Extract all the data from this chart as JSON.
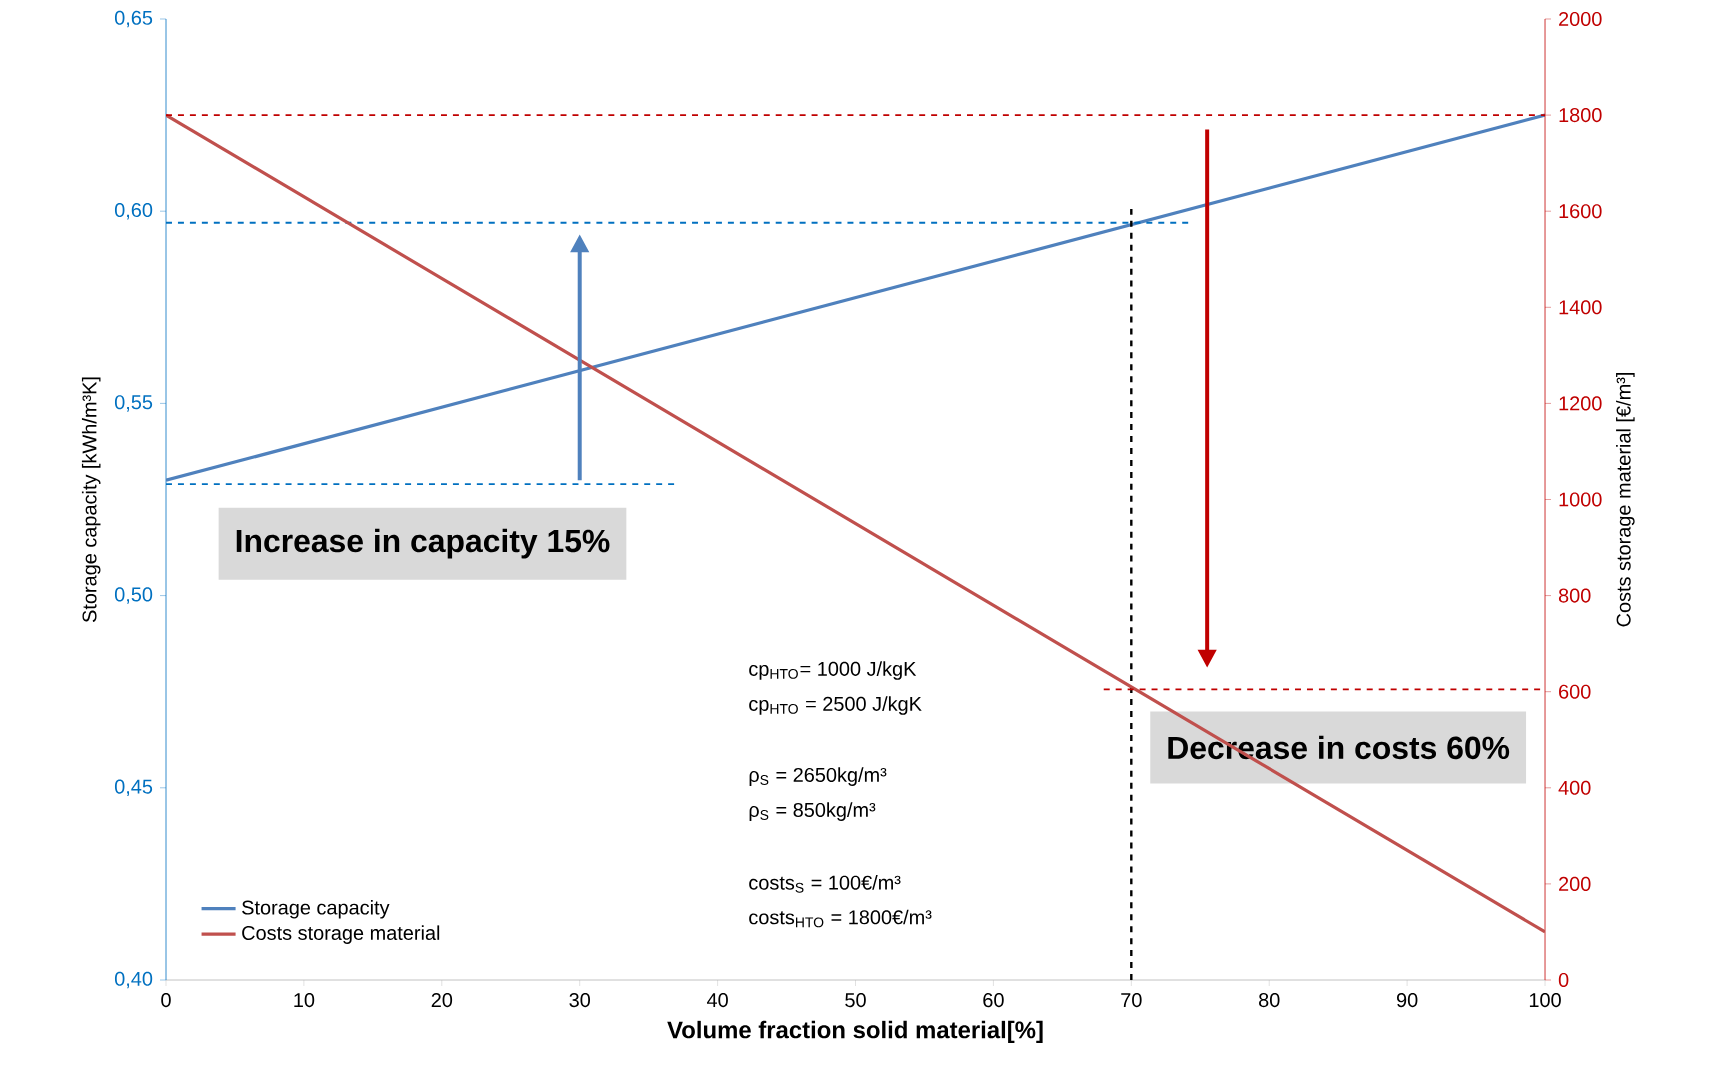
{
  "chart_data": {
    "type": "line",
    "xlabel": "Volume fraction solid material[%]",
    "ylabel": "Storage capacity [kWh/m³K]",
    "y2label": "Costs storage material [€/m³]",
    "x": [
      0,
      100
    ],
    "series": [
      {
        "name": "Storage capacity",
        "color": "#4f81bd",
        "values": [
          0.53,
          0.625
        ]
      },
      {
        "name": "Costs storage material",
        "color": "#c0504d",
        "values": [
          1800,
          100
        ],
        "axis": "y2"
      }
    ],
    "xlim": [
      0,
      100
    ],
    "xticks": [
      0,
      10,
      20,
      30,
      40,
      50,
      60,
      70,
      80,
      90,
      100
    ],
    "ylim": [
      0.4,
      0.65
    ],
    "yticks": [
      {
        "value": 0.4,
        "label": "0,40"
      },
      {
        "value": 0.45,
        "label": "0,45"
      },
      {
        "value": 0.5,
        "label": "0,50"
      },
      {
        "value": 0.55,
        "label": "0,55"
      },
      {
        "value": 0.6,
        "label": "0,60"
      },
      {
        "value": 0.65,
        "label": "0,65"
      }
    ],
    "y2lim": [
      0,
      2000
    ],
    "y2ticks": [
      0,
      200,
      400,
      600,
      800,
      1000,
      1200,
      1400,
      1600,
      1800,
      2000
    ],
    "ref_lines": [
      {
        "axis": "y",
        "value": 0.597,
        "color": "#0070c0",
        "line_style": "dashed"
      },
      {
        "axis": "y",
        "value": 0.529,
        "color": "#0070c0",
        "line_style": "dashed"
      },
      {
        "axis": "y2",
        "value": 1800,
        "color": "#c00000",
        "line_style": "dashed"
      },
      {
        "axis": "y2",
        "value": 605,
        "color": "#c00000",
        "line_style": "dashed"
      },
      {
        "axis": "x",
        "value": 70,
        "color": "#000000",
        "line_style": "dashed"
      }
    ],
    "annotations": [
      "Increase in capacity 15%",
      "Decrease in costs 60%",
      "cp$_{HTO}$=  1000 J/kgK",
      "cp$_{HTO}$ = 2500 J/kgK",
      "ρ$_{S}$ = 2650kg/m³",
      "ρ$_{S}$ = 850kg/m³",
      "costs$_{S}$ = 100€/m³",
      "costs$_{HTO}$  = 1800€/m³"
    ],
    "legend": "bottom left",
    "marker": "none",
    "line_style": "solid",
    "grid": false
  }
}
